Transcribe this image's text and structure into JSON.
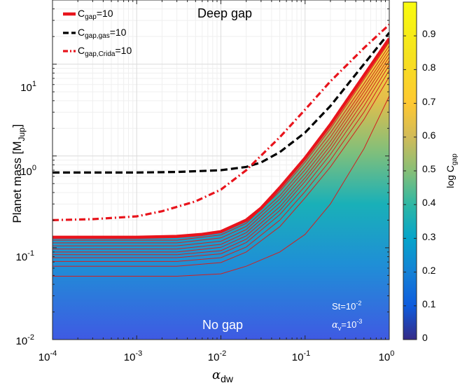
{
  "chart_data": {
    "type": "heatmap",
    "xlabel": "α",
    "xlabel_sub": "dw",
    "ylabel_main": "Planet mass [M",
    "ylabel_sub": "Jup",
    "ylabel_end": "]",
    "x_scale": "log",
    "y_scale": "log",
    "xlim": [
      0.0001,
      1
    ],
    "ylim": [
      0.01,
      50
    ],
    "grid": true,
    "x_ticks": [
      {
        "base": "10",
        "exp": "-4",
        "value": 0.0001
      },
      {
        "base": "10",
        "exp": "-3",
        "value": 0.001
      },
      {
        "base": "10",
        "exp": "-2",
        "value": 0.01
      },
      {
        "base": "10",
        "exp": "-1",
        "value": 0.1
      },
      {
        "base": "10",
        "exp": "0",
        "value": 1
      }
    ],
    "y_ticks": [
      {
        "base": "10",
        "exp": "-2",
        "value": 0.01
      },
      {
        "base": "10",
        "exp": "-1",
        "value": 0.1
      },
      {
        "base": "10",
        "exp": "0",
        "value": 1
      },
      {
        "base": "10",
        "exp": "1",
        "value": 10
      }
    ],
    "colorbar": {
      "label_main": "log C",
      "label_sub": "gap",
      "range": [
        0,
        1
      ],
      "ticks": [
        "0",
        "0.1",
        "0.2",
        "0.3",
        "0.4",
        "0.5",
        "0.6",
        "0.7",
        "0.8",
        "0.9"
      ],
      "colormap": "parula"
    },
    "annotations": {
      "deep_gap": "Deep gap",
      "no_gap": "No gap",
      "st_base": "St=10",
      "st_exp": "-2",
      "alpha_v_base": "α",
      "alpha_v_sub": "v",
      "alpha_v_mid": "=10",
      "alpha_v_exp": "-3"
    },
    "legend": {
      "placement": "top-left",
      "entries": [
        {
          "label_main": "C",
          "label_sub": "gap",
          "label_end": "=10",
          "style": "solid",
          "color": "#e8141c"
        },
        {
          "label_main": "C",
          "label_sub": "gap,gas",
          "label_end": "=10",
          "style": "dashed",
          "color": "#000000"
        },
        {
          "label_main": "C",
          "label_sub": "gap,Crida",
          "label_end": "=10",
          "style": "dashdot",
          "color": "#e8141c"
        }
      ]
    },
    "series": [
      {
        "style": "solid",
        "color": "#e8141c",
        "x": [
          0.0001,
          0.0003,
          0.001,
          0.003,
          0.006,
          0.01,
          0.02,
          0.03,
          0.05,
          0.1,
          0.2,
          0.5,
          1
        ],
        "y": [
          0.13,
          0.13,
          0.13,
          0.133,
          0.14,
          0.15,
          0.2,
          0.27,
          0.45,
          0.95,
          2.2,
          7.5,
          19
        ]
      },
      {
        "style": "dashed",
        "color": "#000000",
        "x": [
          0.0001,
          0.0003,
          0.001,
          0.003,
          0.01,
          0.02,
          0.03,
          0.05,
          0.1,
          0.2,
          0.5,
          1
        ],
        "y": [
          0.66,
          0.66,
          0.66,
          0.67,
          0.7,
          0.76,
          0.85,
          1.1,
          1.8,
          3.5,
          10,
          22
        ]
      },
      {
        "style": "dashdot",
        "color": "#e8141c",
        "x": [
          0.0001,
          0.0003,
          0.001,
          0.002,
          0.005,
          0.01,
          0.02,
          0.05,
          0.1,
          0.2,
          0.5,
          1
        ],
        "y": [
          0.2,
          0.205,
          0.22,
          0.25,
          0.32,
          0.43,
          0.7,
          1.6,
          3.2,
          6.5,
          15,
          27
        ]
      }
    ],
    "contours": [
      {
        "x": [
          0.0001,
          0.003,
          0.01,
          0.02,
          0.05,
          0.1,
          0.2,
          0.5,
          1
        ],
        "y": [
          0.121,
          0.121,
          0.138,
          0.185,
          0.41,
          0.86,
          1.98,
          6.8,
          17.4
        ]
      },
      {
        "x": [
          0.0001,
          0.003,
          0.01,
          0.02,
          0.05,
          0.1,
          0.2,
          0.5,
          1
        ],
        "y": [
          0.113,
          0.113,
          0.128,
          0.171,
          0.37,
          0.78,
          1.78,
          6.1,
          15.9
        ]
      },
      {
        "x": [
          0.0001,
          0.003,
          0.01,
          0.02,
          0.05,
          0.1,
          0.2,
          0.5,
          1
        ],
        "y": [
          0.105,
          0.105,
          0.118,
          0.158,
          0.34,
          0.71,
          1.6,
          5.5,
          14.5
        ]
      },
      {
        "x": [
          0.0001,
          0.003,
          0.01,
          0.02,
          0.05,
          0.1,
          0.2,
          0.5,
          1
        ],
        "y": [
          0.097,
          0.097,
          0.109,
          0.146,
          0.31,
          0.64,
          1.44,
          5.0,
          13.2
        ]
      },
      {
        "x": [
          0.0001,
          0.003,
          0.01,
          0.02,
          0.05,
          0.1,
          0.2,
          0.5,
          1
        ],
        "y": [
          0.09,
          0.09,
          0.101,
          0.135,
          0.28,
          0.58,
          1.3,
          4.5,
          12
        ]
      },
      {
        "x": [
          0.0001,
          0.003,
          0.01,
          0.02,
          0.05,
          0.1,
          0.2,
          0.5,
          1
        ],
        "y": [
          0.084,
          0.084,
          0.093,
          0.124,
          0.255,
          0.53,
          1.17,
          4.0,
          10.9
        ]
      },
      {
        "x": [
          0.0001,
          0.003,
          0.01,
          0.02,
          0.05,
          0.1,
          0.2,
          0.5,
          1
        ],
        "y": [
          0.078,
          0.078,
          0.086,
          0.114,
          0.23,
          0.47,
          1.04,
          3.5,
          9.8
        ]
      },
      {
        "x": [
          0.0001,
          0.003,
          0.01,
          0.02,
          0.05,
          0.1,
          0.2,
          0.5,
          1
        ],
        "y": [
          0.071,
          0.071,
          0.078,
          0.102,
          0.2,
          0.41,
          0.9,
          3.0,
          8.6
        ]
      },
      {
        "x": [
          0.0001,
          0.003,
          0.01,
          0.02,
          0.05,
          0.1,
          0.2,
          0.5,
          1
        ],
        "y": [
          0.063,
          0.063,
          0.069,
          0.09,
          0.17,
          0.35,
          0.76,
          2.5,
          7.3
        ]
      },
      {
        "x": [
          0.0001,
          0.003,
          0.01,
          0.02,
          0.05,
          0.1,
          0.2,
          0.5,
          1
        ],
        "y": [
          0.049,
          0.049,
          0.052,
          0.063,
          0.09,
          0.14,
          0.3,
          1.2,
          4.5
        ]
      }
    ]
  }
}
